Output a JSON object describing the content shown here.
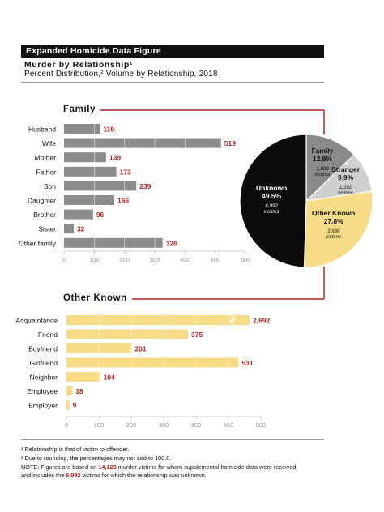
{
  "header": {
    "banner": "Expanded Homicide Data Figure",
    "title": "Murder by Relationship¹",
    "subtitle": "Percent Distribution,² Volume by Relationship, 2018"
  },
  "colors": {
    "family_bar": "#8c8c8c",
    "other_known_bar": "#f7dc87",
    "label_red": "#b22222",
    "pie_family": "#8a8a8a",
    "pie_stranger": "#cfcfcf",
    "pie_other_known": "#f7dc87",
    "pie_unknown": "#0b0b0b",
    "connector": "#b22222"
  },
  "chart_data": [
    {
      "type": "bar",
      "orientation": "horizontal",
      "title": "Family",
      "categories": [
        "Husband",
        "Wife",
        "Mother",
        "Father",
        "Son",
        "Daughter",
        "Brother",
        "Sister",
        "Other family"
      ],
      "values": [
        119,
        519,
        139,
        173,
        239,
        166,
        96,
        32,
        326
      ],
      "xlim": [
        0,
        600
      ],
      "xticks": [
        0,
        100,
        200,
        300,
        400,
        500,
        600
      ],
      "grid": false
    },
    {
      "type": "bar",
      "orientation": "horizontal",
      "title": "Other Known",
      "categories": [
        "Acquaintance",
        "Friend",
        "Boyfriend",
        "Girlfriend",
        "Neighbor",
        "Employee",
        "Employer"
      ],
      "values": [
        2692,
        375,
        201,
        531,
        104,
        18,
        9
      ],
      "value_labels": [
        "2,692",
        "375",
        "201",
        "531",
        "104",
        "18",
        "9"
      ],
      "xlim": [
        0,
        600
      ],
      "xticks": [
        0,
        100,
        200,
        300,
        400,
        500,
        600
      ],
      "axis_break": true,
      "grid": false
    },
    {
      "type": "pie",
      "slices": [
        {
          "name": "Family",
          "percent": "12.8%",
          "count": "1,809",
          "unit": "victims",
          "value": 1809
        },
        {
          "name": "Stranger",
          "percent": "9.9%",
          "count": "1,392",
          "unit": "victims",
          "value": 1392
        },
        {
          "name": "Other Known",
          "percent": "27.8%",
          "count": "3,930",
          "unit": "victims",
          "value": 3930
        },
        {
          "name": "Unknown",
          "percent": "49.5%",
          "count": "6,992",
          "unit": "victims",
          "value": 6992
        }
      ]
    }
  ],
  "footnotes": {
    "note1": "¹ Relationship is that of victim to offender.",
    "note2": "² Due to rounding, the percentages may not add to 100.0.",
    "note3_a": "NOTE:  Figures are based on ",
    "note3_b": "14,123",
    "note3_c": " murder victims for whom supplemental homicide data were received,",
    "note4_a": "and includes the ",
    "note4_b": "6,992",
    "note4_c": " victims for which the relationship was unknown."
  }
}
